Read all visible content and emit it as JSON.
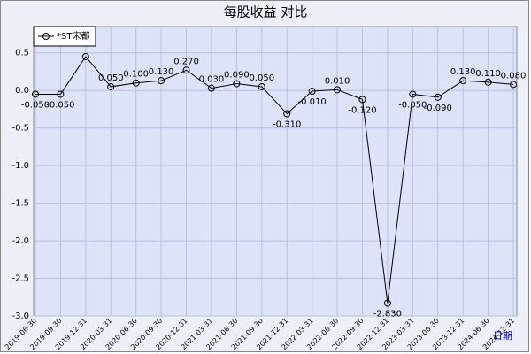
{
  "chart_data": {
    "type": "line",
    "title": "每股收益 对比",
    "x_label": "日期",
    "categories": [
      "2019-06-30",
      "2019-09-30",
      "2019-12-31",
      "2020-03-31",
      "2020-06-30",
      "2020-09-30",
      "2020-12-31",
      "2021-03-31",
      "2021-06-30",
      "2021-09-30",
      "2021-12-31",
      "2022-03-31",
      "2022-06-30",
      "2022-09-30",
      "2022-12-31",
      "2023-03-31",
      "2023-06-30",
      "2023-12-31",
      "2024-06-30",
      "2024-12-31"
    ],
    "series": [
      {
        "name": "*ST宋都",
        "color": "#000000",
        "values": [
          -0.05,
          -0.05,
          0.45,
          0.05,
          0.1,
          0.13,
          0.27,
          0.03,
          0.09,
          0.05,
          -0.31,
          -0.01,
          0.01,
          -0.12,
          -2.83,
          -0.05,
          -0.09,
          0.13,
          0.11,
          0.08
        ],
        "value_labels": [
          "-0.050",
          "-0.050",
          null,
          "0.050",
          "0.100",
          "0.130",
          "0.270",
          "0.030",
          "0.090",
          "0.050",
          "-0.310",
          "-0.010",
          "0.010",
          "-0.120",
          "-2.830",
          "-0.050",
          "-0.090",
          "0.130",
          "0.110",
          "0.080"
        ]
      }
    ],
    "ylim": [
      -3.0,
      0.85
    ],
    "yticks": [
      0.5,
      {
        "value": 0,
        "label": "0.0"
      },
      -0.5,
      {
        "value": -1,
        "label": "-1.0"
      },
      -1.5,
      {
        "value": -2,
        "label": "-2.0"
      },
      -2.5,
      {
        "value": -3,
        "label": "-3.0"
      }
    ],
    "grid": true,
    "legend": "top-left"
  }
}
